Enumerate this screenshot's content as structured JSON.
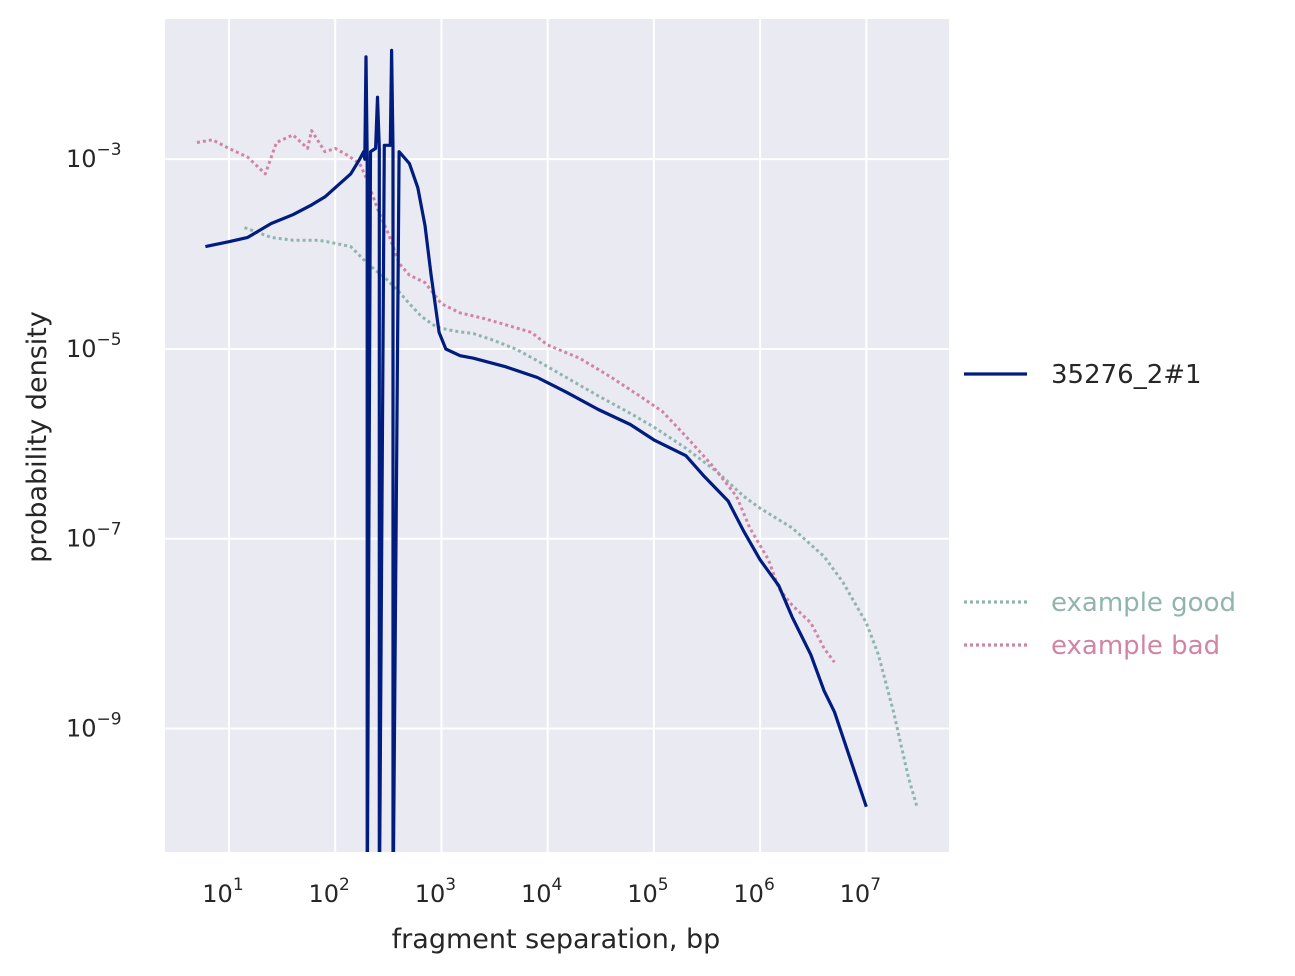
{
  "chart_data": {
    "type": "line",
    "title": "",
    "xlabel": "fragment separation, bp",
    "ylabel": "probability density",
    "xscale": "log",
    "yscale": "log",
    "xlim": [
      2.5,
      60000000
    ],
    "ylim": [
      5e-11,
      0.03
    ],
    "grid": true,
    "background": "#eaeaf2",
    "x_ticks": [
      {
        "value": 10,
        "base": "10",
        "exp": "1"
      },
      {
        "value": 100,
        "base": "10",
        "exp": "2"
      },
      {
        "value": 1000,
        "base": "10",
        "exp": "3"
      },
      {
        "value": 10000,
        "base": "10",
        "exp": "4"
      },
      {
        "value": 100000,
        "base": "10",
        "exp": "5"
      },
      {
        "value": 1000000,
        "base": "10",
        "exp": "6"
      },
      {
        "value": 10000000,
        "base": "10",
        "exp": "7"
      }
    ],
    "y_ticks": [
      {
        "value": 0.001,
        "base": "10",
        "exp": "−3"
      },
      {
        "value": 1e-05,
        "base": "10",
        "exp": "−5"
      },
      {
        "value": 1e-07,
        "base": "10",
        "exp": "−7"
      },
      {
        "value": 1e-09,
        "base": "10",
        "exp": "−9"
      }
    ],
    "series": [
      {
        "name": "example good",
        "color": "#8fb5ad",
        "style": "dotted",
        "legend_position": "lower-right-outside",
        "points": [
          [
            14,
            0.00019
          ],
          [
            25,
            0.00015
          ],
          [
            40,
            0.00014
          ],
          [
            70,
            0.00014
          ],
          [
            100,
            0.00013
          ],
          [
            140,
            0.00012
          ],
          [
            200,
            8e-05
          ],
          [
            300,
            5.5e-05
          ],
          [
            400,
            4e-05
          ],
          [
            500,
            3e-05
          ],
          [
            650,
            2.2e-05
          ],
          [
            900,
            1.7e-05
          ],
          [
            1300,
            1.55e-05
          ],
          [
            2000,
            1.45e-05
          ],
          [
            3000,
            1.25e-05
          ],
          [
            5000,
            1e-05
          ],
          [
            8000,
            7.5e-06
          ],
          [
            15000,
            5e-06
          ],
          [
            30000,
            3.2e-06
          ],
          [
            60000,
            2.1e-06
          ],
          [
            100000,
            1.5e-06
          ],
          [
            200000,
            9e-07
          ],
          [
            400000,
            5e-07
          ],
          [
            700000,
            2.8e-07
          ],
          [
            1000000,
            2.1e-07
          ],
          [
            2000000,
            1.3e-07
          ],
          [
            4000000,
            6.5e-08
          ],
          [
            6000000,
            3.5e-08
          ],
          [
            8000000,
            2e-08
          ],
          [
            10000000,
            1.3e-08
          ],
          [
            13000000,
            6e-09
          ],
          [
            18000000,
            1.5e-09
          ],
          [
            25000000,
            3e-10
          ],
          [
            30000000,
            1.5e-10
          ]
        ]
      },
      {
        "name": "example bad",
        "color": "#d285a3",
        "style": "dotted",
        "legend_position": "lower-right-outside",
        "points": [
          [
            5,
            0.0015
          ],
          [
            7,
            0.0016
          ],
          [
            10,
            0.0013
          ],
          [
            15,
            0.00105
          ],
          [
            22,
            0.0007
          ],
          [
            28,
            0.0015
          ],
          [
            40,
            0.0018
          ],
          [
            55,
            0.0013
          ],
          [
            60,
            0.002
          ],
          [
            80,
            0.0012
          ],
          [
            100,
            0.0013
          ],
          [
            130,
            0.0011
          ],
          [
            170,
            0.0009
          ],
          [
            200,
            0.0006
          ],
          [
            250,
            0.0003
          ],
          [
            320,
            0.00016
          ],
          [
            400,
            8e-05
          ],
          [
            500,
            6e-05
          ],
          [
            700,
            5e-05
          ],
          [
            1000,
            3e-05
          ],
          [
            1500,
            2.4e-05
          ],
          [
            2500,
            2.1e-05
          ],
          [
            4000,
            1.8e-05
          ],
          [
            7000,
            1.5e-05
          ],
          [
            10000,
            1.1e-05
          ],
          [
            20000,
            8e-06
          ],
          [
            40000,
            5e-06
          ],
          [
            80000,
            3e-06
          ],
          [
            120000,
            2.2e-06
          ],
          [
            200000,
            1.2e-06
          ],
          [
            350000,
            6e-07
          ],
          [
            600000,
            2.8e-07
          ],
          [
            800000,
            1.3e-07
          ],
          [
            1200000,
            6e-08
          ],
          [
            1500000,
            3e-08
          ],
          [
            2000000,
            2e-08
          ],
          [
            3000000,
            1.3e-08
          ],
          [
            4000000,
            7e-09
          ],
          [
            5000000,
            5e-09
          ]
        ]
      },
      {
        "name": "35276_2#1",
        "color": "#001c7f",
        "style": "solid",
        "legend_position": "center-right-outside",
        "points": [
          [
            6,
            0.00012
          ],
          [
            10,
            0.000135
          ],
          [
            15,
            0.00015
          ],
          [
            25,
            0.00021
          ],
          [
            40,
            0.00026
          ],
          [
            60,
            0.00033
          ],
          [
            80,
            0.0004
          ],
          [
            110,
            0.00055
          ],
          [
            140,
            0.0007
          ],
          [
            170,
            0.001
          ],
          [
            185,
            0.0012
          ],
          [
            190,
            0.001
          ],
          [
            195,
            0.012
          ],
          [
            200,
            0.001
          ],
          [
            200,
            1e-11
          ],
          [
            215,
            0.0012
          ],
          [
            240,
            0.0013
          ],
          [
            250,
            0.0045
          ],
          [
            260,
            0.0013
          ],
          [
            260,
            1e-11
          ],
          [
            290,
            0.0014
          ],
          [
            330,
            0.0014
          ],
          [
            340,
            0.014
          ],
          [
            350,
            0.0013
          ],
          [
            350,
            1e-11
          ],
          [
            400,
            0.0012
          ],
          [
            500,
            0.0009
          ],
          [
            600,
            0.0005
          ],
          [
            700,
            0.0002
          ],
          [
            800,
            6e-05
          ],
          [
            950,
            1.5e-05
          ],
          [
            1100,
            1e-05
          ],
          [
            1500,
            8.5e-06
          ],
          [
            2000,
            8e-06
          ],
          [
            4000,
            6.5e-06
          ],
          [
            8000,
            5e-06
          ],
          [
            15000,
            3.5e-06
          ],
          [
            30000,
            2.3e-06
          ],
          [
            60000,
            1.6e-06
          ],
          [
            100000,
            1.1e-06
          ],
          [
            200000,
            7.5e-07
          ],
          [
            300000,
            4.5e-07
          ],
          [
            500000,
            2.5e-07
          ],
          [
            700000,
            1.2e-07
          ],
          [
            1000000,
            6e-08
          ],
          [
            1500000,
            3.2e-08
          ],
          [
            2000000,
            1.5e-08
          ],
          [
            3000000,
            6e-09
          ],
          [
            4000000,
            2.5e-09
          ],
          [
            5000000,
            1.5e-09
          ],
          [
            10000000,
            1.5e-10
          ]
        ]
      }
    ]
  }
}
